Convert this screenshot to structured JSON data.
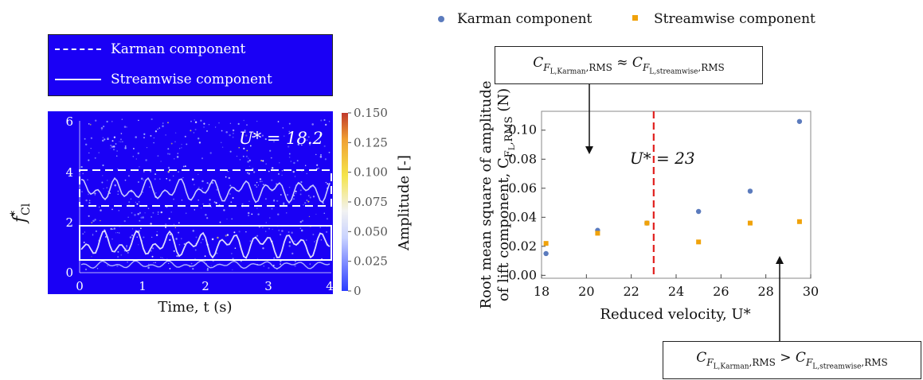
{
  "left_legend": {
    "karman_label": "Karman component",
    "streamwise_label": "Streamwise component",
    "background": "#1a00f5"
  },
  "spectrogram": {
    "ylabel_main": "f",
    "ylabel_sup": "*",
    "ylabel_sub": "Cl",
    "xlabel": "Time, t (s)",
    "x_ticks": [
      "0",
      "1",
      "2",
      "3",
      "4"
    ],
    "y_ticks": [
      "0",
      "2",
      "4",
      "6"
    ],
    "annotation": "U* = 18.2",
    "colorbar_label": "Amplitude [-]",
    "colorbar_ticks": [
      "0",
      "0.025",
      "0.050",
      "0.075",
      "0.100",
      "0.125",
      "0.150"
    ],
    "colors": {
      "background": "#1a00f5",
      "low": "#2a00ff",
      "high": "#c0392b"
    }
  },
  "chart_data": {
    "type": "scatter",
    "title": "",
    "xlabel": "Reduced velocity, U*",
    "ylabel": "Root mean square of amplitude of lift component, C_{F_L,RMS} (N)",
    "ylabel_line1": "Root mean square of amplitude",
    "ylabel_line2": "of lift component, C",
    "ylabel_sub": "F",
    "ylabel_subsub": "L",
    "ylabel_sub2": ",RMS",
    "ylabel_unit": " (N)",
    "xlim": [
      18,
      30
    ],
    "ylim": [
      -0.002,
      0.113
    ],
    "x_ticks": [
      18,
      20,
      22,
      24,
      26,
      28,
      30
    ],
    "x_tick_labels": [
      "18",
      "20",
      "22",
      "24",
      "26",
      "28",
      "30"
    ],
    "y_ticks": [
      0,
      0.02,
      0.04,
      0.06,
      0.08,
      0.1
    ],
    "y_tick_labels": [
      "0.00",
      "0.02",
      "0.04",
      "0.06",
      "0.08",
      "0.10"
    ],
    "legend_position": "top",
    "series": [
      {
        "name": "Karman component",
        "marker": "circle",
        "color": "#5b7bbd",
        "x": [
          18.2,
          20.5,
          22.7,
          25.0,
          27.3,
          29.5
        ],
        "y": [
          0.015,
          0.031,
          0.036,
          0.044,
          0.058,
          0.106
        ]
      },
      {
        "name": "Streamwise component",
        "marker": "square",
        "color": "#f0a20a",
        "x": [
          18.2,
          20.5,
          22.7,
          25.0,
          27.3,
          29.5
        ],
        "y": [
          0.022,
          0.029,
          0.036,
          0.023,
          0.036,
          0.037
        ]
      }
    ],
    "reference_line": {
      "x": 23,
      "label": "U* = 23",
      "color": "#e0201e"
    },
    "annotations": [
      {
        "text": "C_{F_L,Karman,RMS} ≈ C_{F_L,streamwise,RMS}"
      },
      {
        "text": "C_{F_L,Karman,RMS} > C_{F_L,streamwise,RMS}"
      }
    ]
  },
  "annotation_top": {
    "prefix": "C",
    "sub": "F",
    "subsub": "L,Karman",
    "subtail": ",RMS",
    "op": " ≈ ",
    "prefix2": "C",
    "sub2": "F",
    "subsub2": "L,streamwise",
    "subtail2": ",RMS"
  },
  "annotation_bottom": {
    "prefix": "C",
    "sub": "F",
    "subsub": "L,Karman",
    "subtail": ",RMS",
    "op": " > ",
    "prefix2": "C",
    "sub2": "F",
    "subsub2": "L,streamwise",
    "subtail2": ",RMS"
  }
}
